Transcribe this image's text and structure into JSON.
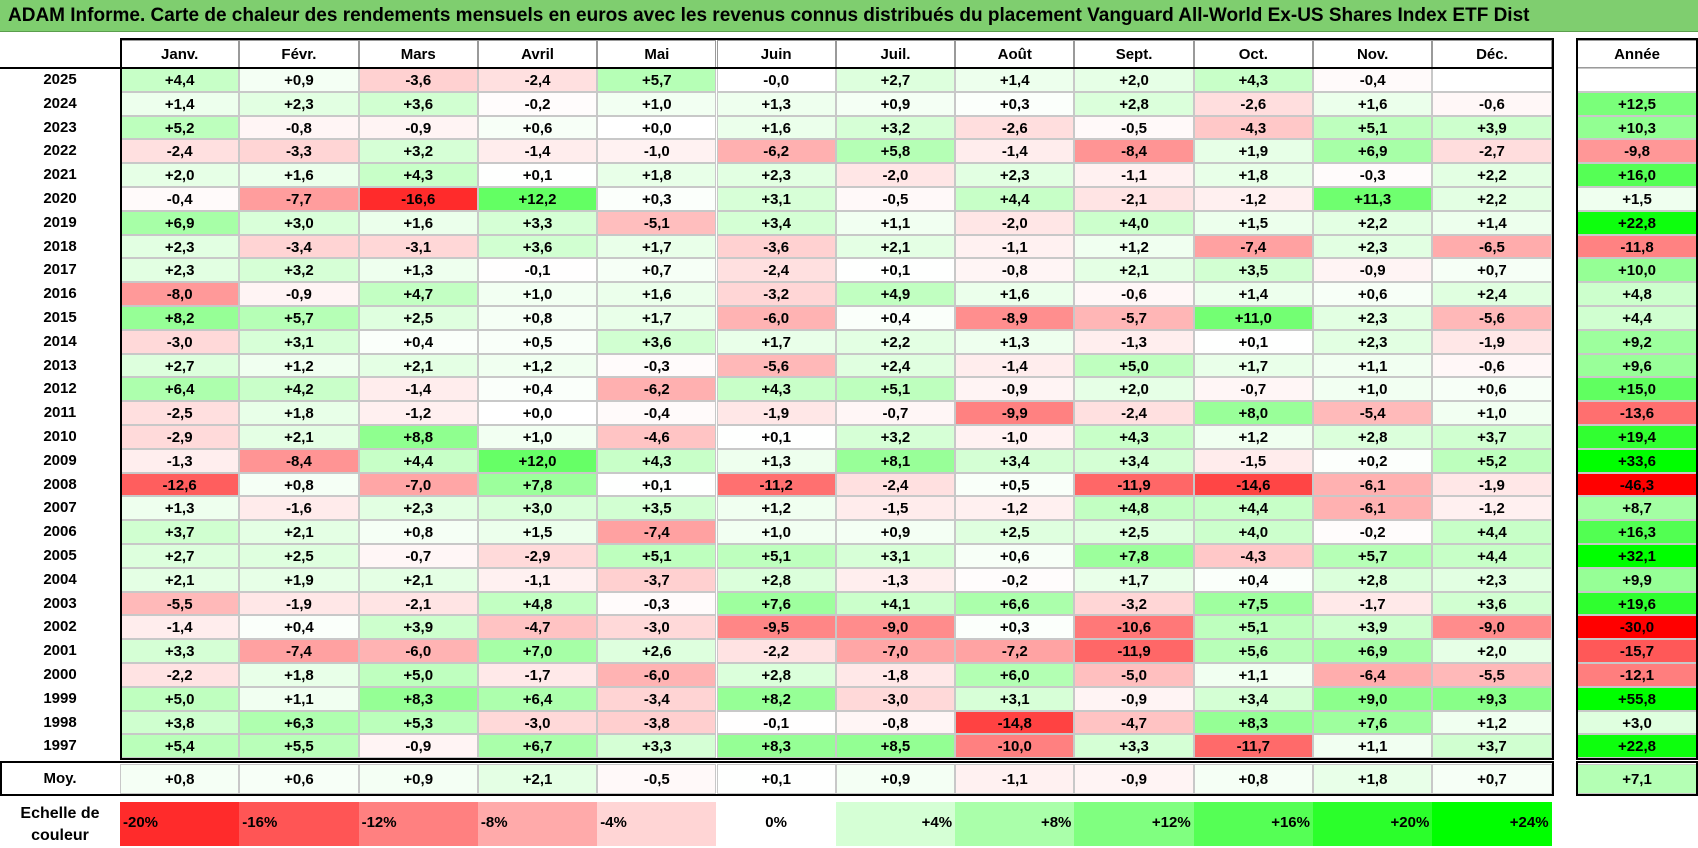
{
  "title": "ADAM Informe. Carte de chaleur des rendements mensuels en euros avec les revenus connus distribués du placement Vanguard All-World Ex-US Shares Index ETF Dist",
  "chart_data": {
    "type": "heatmap",
    "title": "ADAM Informe. Carte de chaleur des rendements mensuels en euros avec les revenus connus distribués du placement Vanguard All-World Ex-US Shares Index ETF Dist",
    "months": [
      "Janv.",
      "Févr.",
      "Mars",
      "Avril",
      "Mai",
      "Juin",
      "Juil.",
      "Août",
      "Sept.",
      "Oct.",
      "Nov.",
      "Déc."
    ],
    "year_header": "Année",
    "rows": [
      {
        "year": "2025",
        "values": [
          "+4,4",
          "+0,9",
          "-3,6",
          "-2,4",
          "+5,7",
          "-0,0",
          "+2,7",
          "+1,4",
          "+2,0",
          "+4,3",
          "-0,4",
          ""
        ],
        "annual": ""
      },
      {
        "year": "2024",
        "values": [
          "+1,4",
          "+2,3",
          "+3,6",
          "-0,2",
          "+1,0",
          "+1,3",
          "+0,9",
          "+0,3",
          "+2,8",
          "-2,6",
          "+1,6",
          "-0,6"
        ],
        "annual": "+12,5"
      },
      {
        "year": "2023",
        "values": [
          "+5,2",
          "-0,8",
          "-0,9",
          "+0,6",
          "+0,0",
          "+1,6",
          "+3,2",
          "-2,6",
          "-0,5",
          "-4,3",
          "+5,1",
          "+3,9"
        ],
        "annual": "+10,3"
      },
      {
        "year": "2022",
        "values": [
          "-2,4",
          "-3,3",
          "+3,2",
          "-1,4",
          "-1,0",
          "-6,2",
          "+5,8",
          "-1,4",
          "-8,4",
          "+1,9",
          "+6,9",
          "-2,7"
        ],
        "annual": "-9,8"
      },
      {
        "year": "2021",
        "values": [
          "+2,0",
          "+1,6",
          "+4,3",
          "+0,1",
          "+1,8",
          "+2,3",
          "-2,0",
          "+2,3",
          "-1,1",
          "+1,8",
          "-0,3",
          "+2,2"
        ],
        "annual": "+16,0"
      },
      {
        "year": "2020",
        "values": [
          "-0,4",
          "-7,7",
          "-16,6",
          "+12,2",
          "+0,3",
          "+3,1",
          "-0,5",
          "+4,4",
          "-2,1",
          "-1,2",
          "+11,3",
          "+2,2"
        ],
        "annual": "+1,5"
      },
      {
        "year": "2019",
        "values": [
          "+6,9",
          "+3,0",
          "+1,6",
          "+3,3",
          "-5,1",
          "+3,4",
          "+1,1",
          "-2,0",
          "+4,0",
          "+1,5",
          "+2,2",
          "+1,4"
        ],
        "annual": "+22,8"
      },
      {
        "year": "2018",
        "values": [
          "+2,3",
          "-3,4",
          "-3,1",
          "+3,6",
          "+1,7",
          "-3,6",
          "+2,1",
          "-1,1",
          "+1,2",
          "-7,4",
          "+2,3",
          "-6,5"
        ],
        "annual": "-11,8"
      },
      {
        "year": "2017",
        "values": [
          "+2,3",
          "+3,2",
          "+1,3",
          "-0,1",
          "+0,7",
          "-2,4",
          "+0,1",
          "-0,8",
          "+2,1",
          "+3,5",
          "-0,9",
          "+0,7"
        ],
        "annual": "+10,0"
      },
      {
        "year": "2016",
        "values": [
          "-8,0",
          "-0,9",
          "+4,7",
          "+1,0",
          "+1,6",
          "-3,2",
          "+4,9",
          "+1,6",
          "-0,6",
          "+1,4",
          "+0,6",
          "+2,4"
        ],
        "annual": "+4,8"
      },
      {
        "year": "2015",
        "values": [
          "+8,2",
          "+5,7",
          "+2,5",
          "+0,8",
          "+1,7",
          "-6,0",
          "+0,4",
          "-8,9",
          "-5,7",
          "+11,0",
          "+2,3",
          "-5,6"
        ],
        "annual": "+4,4"
      },
      {
        "year": "2014",
        "values": [
          "-3,0",
          "+3,1",
          "+0,4",
          "+0,5",
          "+3,6",
          "+1,7",
          "+2,2",
          "+1,3",
          "-1,3",
          "+0,1",
          "+2,3",
          "-1,9"
        ],
        "annual": "+9,2"
      },
      {
        "year": "2013",
        "values": [
          "+2,7",
          "+1,2",
          "+2,1",
          "+1,2",
          "-0,3",
          "-5,6",
          "+2,4",
          "-1,4",
          "+5,0",
          "+1,7",
          "+1,1",
          "-0,6"
        ],
        "annual": "+9,6"
      },
      {
        "year": "2012",
        "values": [
          "+6,4",
          "+4,2",
          "-1,4",
          "+0,4",
          "-6,2",
          "+4,3",
          "+5,1",
          "-0,9",
          "+2,0",
          "-0,7",
          "+1,0",
          "+0,6"
        ],
        "annual": "+15,0"
      },
      {
        "year": "2011",
        "values": [
          "-2,5",
          "+1,8",
          "-1,2",
          "+0,0",
          "-0,4",
          "-1,9",
          "-0,7",
          "-9,9",
          "-2,4",
          "+8,0",
          "-5,4",
          "+1,0"
        ],
        "annual": "-13,6"
      },
      {
        "year": "2010",
        "values": [
          "-2,9",
          "+2,1",
          "+8,8",
          "+1,0",
          "-4,6",
          "+0,1",
          "+3,2",
          "-1,0",
          "+4,3",
          "+1,2",
          "+2,8",
          "+3,7"
        ],
        "annual": "+19,4"
      },
      {
        "year": "2009",
        "values": [
          "-1,3",
          "-8,4",
          "+4,4",
          "+12,0",
          "+4,3",
          "+1,3",
          "+8,1",
          "+3,4",
          "+3,4",
          "-1,5",
          "+0,2",
          "+5,2"
        ],
        "annual": "+33,6"
      },
      {
        "year": "2008",
        "values": [
          "-12,6",
          "+0,8",
          "-7,0",
          "+7,8",
          "+0,1",
          "-11,2",
          "-2,4",
          "+0,5",
          "-11,9",
          "-14,6",
          "-6,1",
          "-1,9"
        ],
        "annual": "-46,3"
      },
      {
        "year": "2007",
        "values": [
          "+1,3",
          "-1,6",
          "+2,3",
          "+3,0",
          "+3,5",
          "+1,2",
          "-1,5",
          "-1,2",
          "+4,8",
          "+4,4",
          "-6,1",
          "-1,2"
        ],
        "annual": "+8,7"
      },
      {
        "year": "2006",
        "values": [
          "+3,7",
          "+2,1",
          "+0,8",
          "+1,5",
          "-7,4",
          "+1,0",
          "+0,9",
          "+2,5",
          "+2,5",
          "+4,0",
          "-0,2",
          "+4,4"
        ],
        "annual": "+16,3"
      },
      {
        "year": "2005",
        "values": [
          "+2,7",
          "+2,5",
          "-0,7",
          "-2,9",
          "+5,1",
          "+5,1",
          "+3,1",
          "+0,6",
          "+7,8",
          "-4,3",
          "+5,7",
          "+4,4"
        ],
        "annual": "+32,1"
      },
      {
        "year": "2004",
        "values": [
          "+2,1",
          "+1,9",
          "+2,1",
          "-1,1",
          "-3,7",
          "+2,8",
          "-1,3",
          "-0,2",
          "+1,7",
          "+0,4",
          "+2,8",
          "+2,3"
        ],
        "annual": "+9,9"
      },
      {
        "year": "2003",
        "values": [
          "-5,5",
          "-1,9",
          "-2,1",
          "+4,8",
          "-0,3",
          "+7,6",
          "+4,1",
          "+6,6",
          "-3,2",
          "+7,5",
          "-1,7",
          "+3,6"
        ],
        "annual": "+19,6"
      },
      {
        "year": "2002",
        "values": [
          "-1,4",
          "+0,4",
          "+3,9",
          "-4,7",
          "-3,0",
          "-9,5",
          "-9,0",
          "+0,3",
          "-10,6",
          "+5,1",
          "+3,9",
          "-9,0"
        ],
        "annual": "-30,0"
      },
      {
        "year": "2001",
        "values": [
          "+3,3",
          "-7,4",
          "-6,0",
          "+7,0",
          "+2,6",
          "-2,2",
          "-7,0",
          "-7,2",
          "-11,9",
          "+5,6",
          "+6,9",
          "+2,0"
        ],
        "annual": "-15,7"
      },
      {
        "year": "2000",
        "values": [
          "-2,2",
          "+1,8",
          "+5,0",
          "-1,7",
          "-6,0",
          "+2,8",
          "-1,8",
          "+6,0",
          "-5,0",
          "+1,1",
          "-6,4",
          "-5,5"
        ],
        "annual": "-12,1"
      },
      {
        "year": "1999",
        "values": [
          "+5,0",
          "+1,1",
          "+8,3",
          "+6,4",
          "-3,4",
          "+8,2",
          "-3,0",
          "+3,1",
          "-0,9",
          "+3,4",
          "+9,0",
          "+9,3"
        ],
        "annual": "+55,8"
      },
      {
        "year": "1998",
        "values": [
          "+3,8",
          "+6,3",
          "+5,3",
          "-3,0",
          "-3,8",
          "-0,1",
          "-0,8",
          "-14,8",
          "-4,7",
          "+8,3",
          "+7,6",
          "+1,2"
        ],
        "annual": "+3,0"
      },
      {
        "year": "1997",
        "values": [
          "+5,4",
          "+5,5",
          "-0,9",
          "+6,7",
          "+3,3",
          "+8,3",
          "+8,5",
          "-10,0",
          "+3,3",
          "-11,7",
          "+1,1",
          "+3,7"
        ],
        "annual": "+22,8"
      }
    ],
    "average": {
      "label": "Moy.",
      "values": [
        "+0,8",
        "+0,6",
        "+0,9",
        "+2,1",
        "-0,5",
        "+0,1",
        "+0,9",
        "-1,1",
        "-0,9",
        "+0,8",
        "+1,8",
        "+0,7"
      ],
      "annual": "+7,1"
    },
    "color_scale": {
      "label": "Echelle de couleur",
      "steps": [
        {
          "label": "-20%",
          "value": -20
        },
        {
          "label": "-16%",
          "value": -16
        },
        {
          "label": "-12%",
          "value": -12
        },
        {
          "label": "-8%",
          "value": -8
        },
        {
          "label": "-4%",
          "value": -4
        },
        {
          "label": "0%",
          "value": 0
        },
        {
          "label": "+4%",
          "value": 4
        },
        {
          "label": "+8%",
          "value": 8
        },
        {
          "label": "+12%",
          "value": 12
        },
        {
          "label": "+16%",
          "value": 16
        },
        {
          "label": "+20%",
          "value": 20
        },
        {
          "label": "+24%",
          "value": 24
        }
      ]
    },
    "colors": {
      "negative": "#ff0000",
      "neutral": "#ffffff",
      "positive": "#00ff00",
      "title_bg": "#7fce6f"
    }
  }
}
